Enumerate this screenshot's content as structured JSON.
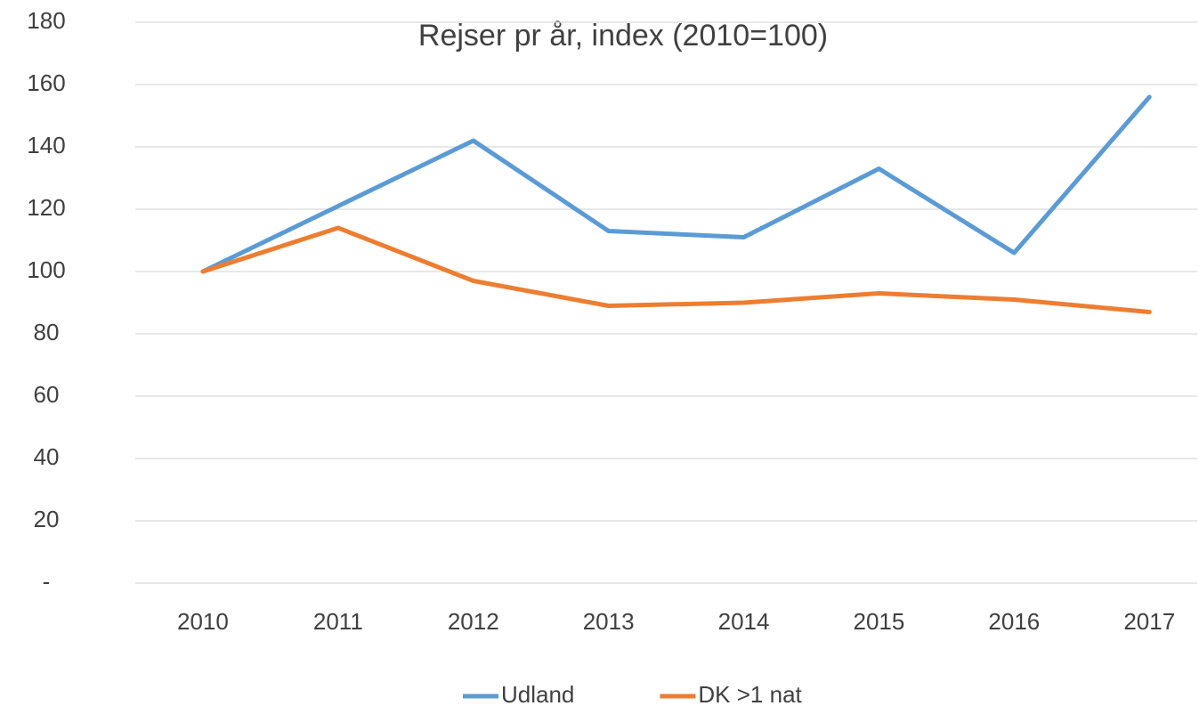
{
  "chart_data": {
    "type": "line",
    "title": "Rejser pr år, index (2010=100)",
    "categories": [
      "2010",
      "2011",
      "2012",
      "2013",
      "2014",
      "2015",
      "2016",
      "2017"
    ],
    "series": [
      {
        "name": "Udland",
        "color": "#5b9bd5",
        "values": [
          100,
          121,
          142,
          113,
          111,
          133,
          106,
          156
        ]
      },
      {
        "name": "DK >1 nat",
        "color": "#ed7d31",
        "values": [
          100,
          114,
          97,
          89,
          90,
          93,
          91,
          87
        ]
      }
    ],
    "ylim": [
      0,
      180
    ],
    "yticks": [
      {
        "value": 0,
        "label": "-"
      },
      20,
      40,
      60,
      80,
      100,
      120,
      140,
      160,
      180
    ],
    "grid": true,
    "legend": "bottom"
  }
}
